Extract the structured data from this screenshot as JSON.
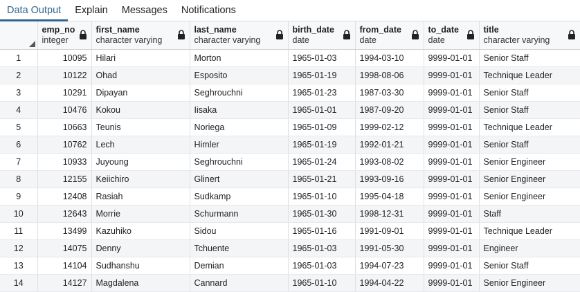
{
  "tabs": [
    {
      "label": "Data Output",
      "active": true
    },
    {
      "label": "Explain",
      "active": false
    },
    {
      "label": "Messages",
      "active": false
    },
    {
      "label": "Notifications",
      "active": false
    }
  ],
  "columns": [
    {
      "name": "emp_no",
      "type": "integer"
    },
    {
      "name": "first_name",
      "type": "character varying"
    },
    {
      "name": "last_name",
      "type": "character varying"
    },
    {
      "name": "birth_date",
      "type": "date"
    },
    {
      "name": "from_date",
      "type": "date"
    },
    {
      "name": "to_date",
      "type": "date"
    },
    {
      "name": "title",
      "type": "character varying"
    }
  ],
  "rows": [
    [
      "1",
      "10095",
      "Hilari",
      "Morton",
      "1965-01-03",
      "1994-03-10",
      "9999-01-01",
      "Senior Staff"
    ],
    [
      "2",
      "10122",
      "Ohad",
      "Esposito",
      "1965-01-19",
      "1998-08-06",
      "9999-01-01",
      "Technique Leader"
    ],
    [
      "3",
      "10291",
      "Dipayan",
      "Seghrouchni",
      "1965-01-23",
      "1987-03-30",
      "9999-01-01",
      "Senior Staff"
    ],
    [
      "4",
      "10476",
      "Kokou",
      "Iisaka",
      "1965-01-01",
      "1987-09-20",
      "9999-01-01",
      "Senior Staff"
    ],
    [
      "5",
      "10663",
      "Teunis",
      "Noriega",
      "1965-01-09",
      "1999-02-12",
      "9999-01-01",
      "Technique Leader"
    ],
    [
      "6",
      "10762",
      "Lech",
      "Himler",
      "1965-01-19",
      "1992-01-21",
      "9999-01-01",
      "Senior Staff"
    ],
    [
      "7",
      "10933",
      "Juyoung",
      "Seghrouchni",
      "1965-01-24",
      "1993-08-02",
      "9999-01-01",
      "Senior Engineer"
    ],
    [
      "8",
      "12155",
      "Keiichiro",
      "Glinert",
      "1965-01-21",
      "1993-09-16",
      "9999-01-01",
      "Senior Engineer"
    ],
    [
      "9",
      "12408",
      "Rasiah",
      "Sudkamp",
      "1965-01-10",
      "1995-04-18",
      "9999-01-01",
      "Senior Engineer"
    ],
    [
      "10",
      "12643",
      "Morrie",
      "Schurmann",
      "1965-01-30",
      "1998-12-31",
      "9999-01-01",
      "Staff"
    ],
    [
      "11",
      "13499",
      "Kazuhiko",
      "Sidou",
      "1965-01-16",
      "1991-09-01",
      "9999-01-01",
      "Technique Leader"
    ],
    [
      "12",
      "14075",
      "Denny",
      "Tchuente",
      "1965-01-03",
      "1991-05-30",
      "9999-01-01",
      "Engineer"
    ],
    [
      "13",
      "14104",
      "Sudhanshu",
      "Demian",
      "1965-01-03",
      "1994-07-23",
      "9999-01-01",
      "Senior Staff"
    ],
    [
      "14",
      "14127",
      "Magdalena",
      "Cannard",
      "1965-01-10",
      "1994-04-22",
      "9999-01-01",
      "Senior Engineer"
    ]
  ],
  "icons": {
    "column_lock": "lock-icon",
    "select_all": "select-all-corner-icon"
  },
  "colors": {
    "accent": "#326690",
    "header_bg": "#f7f8fa",
    "alt_row_bg": "#f4f5f7"
  }
}
